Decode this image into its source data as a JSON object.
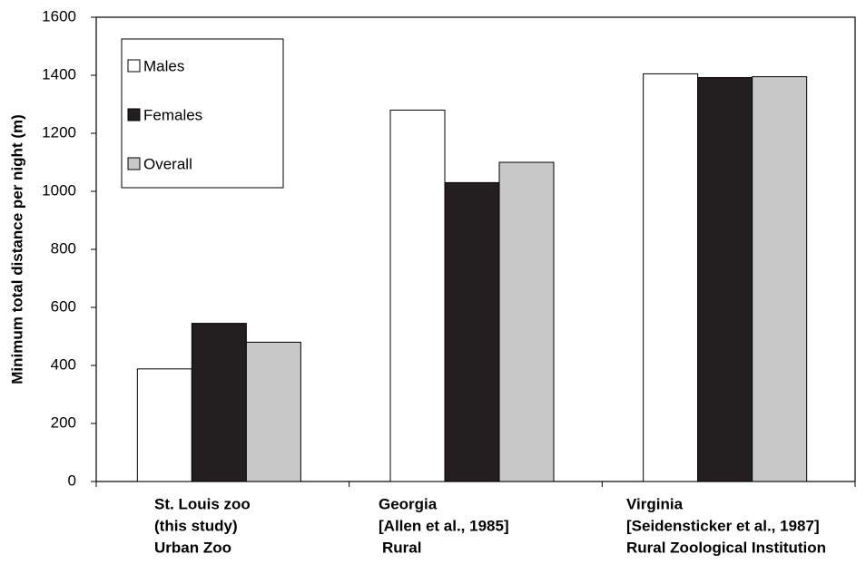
{
  "chart_data": {
    "type": "bar",
    "y_label": "Minimum total distance per night (m)",
    "categories": [
      [
        "St. Louis zoo",
        "(this study)",
        "Urban Zoo"
      ],
      [
        "Georgia",
        "[Allen et al., 1985]",
        "Rural"
      ],
      [
        "Virginia",
        "[Seidensticker et al., 1987]",
        "Rural Zoological Institution"
      ]
    ],
    "series": [
      {
        "name": "Males",
        "color": "#ffffff",
        "values": [
          388,
          1280,
          1405
        ]
      },
      {
        "name": "Females",
        "color": "#231f20",
        "values": [
          545,
          1030,
          1392
        ]
      },
      {
        "name": "Overall",
        "color": "#c8c8c8",
        "values": [
          480,
          1100,
          1395
        ]
      }
    ],
    "ylim": [
      0,
      1600
    ],
    "yticks": [
      0,
      200,
      400,
      600,
      800,
      1000,
      1200,
      1400,
      1600
    ],
    "legend": "upper left",
    "grid": false
  }
}
